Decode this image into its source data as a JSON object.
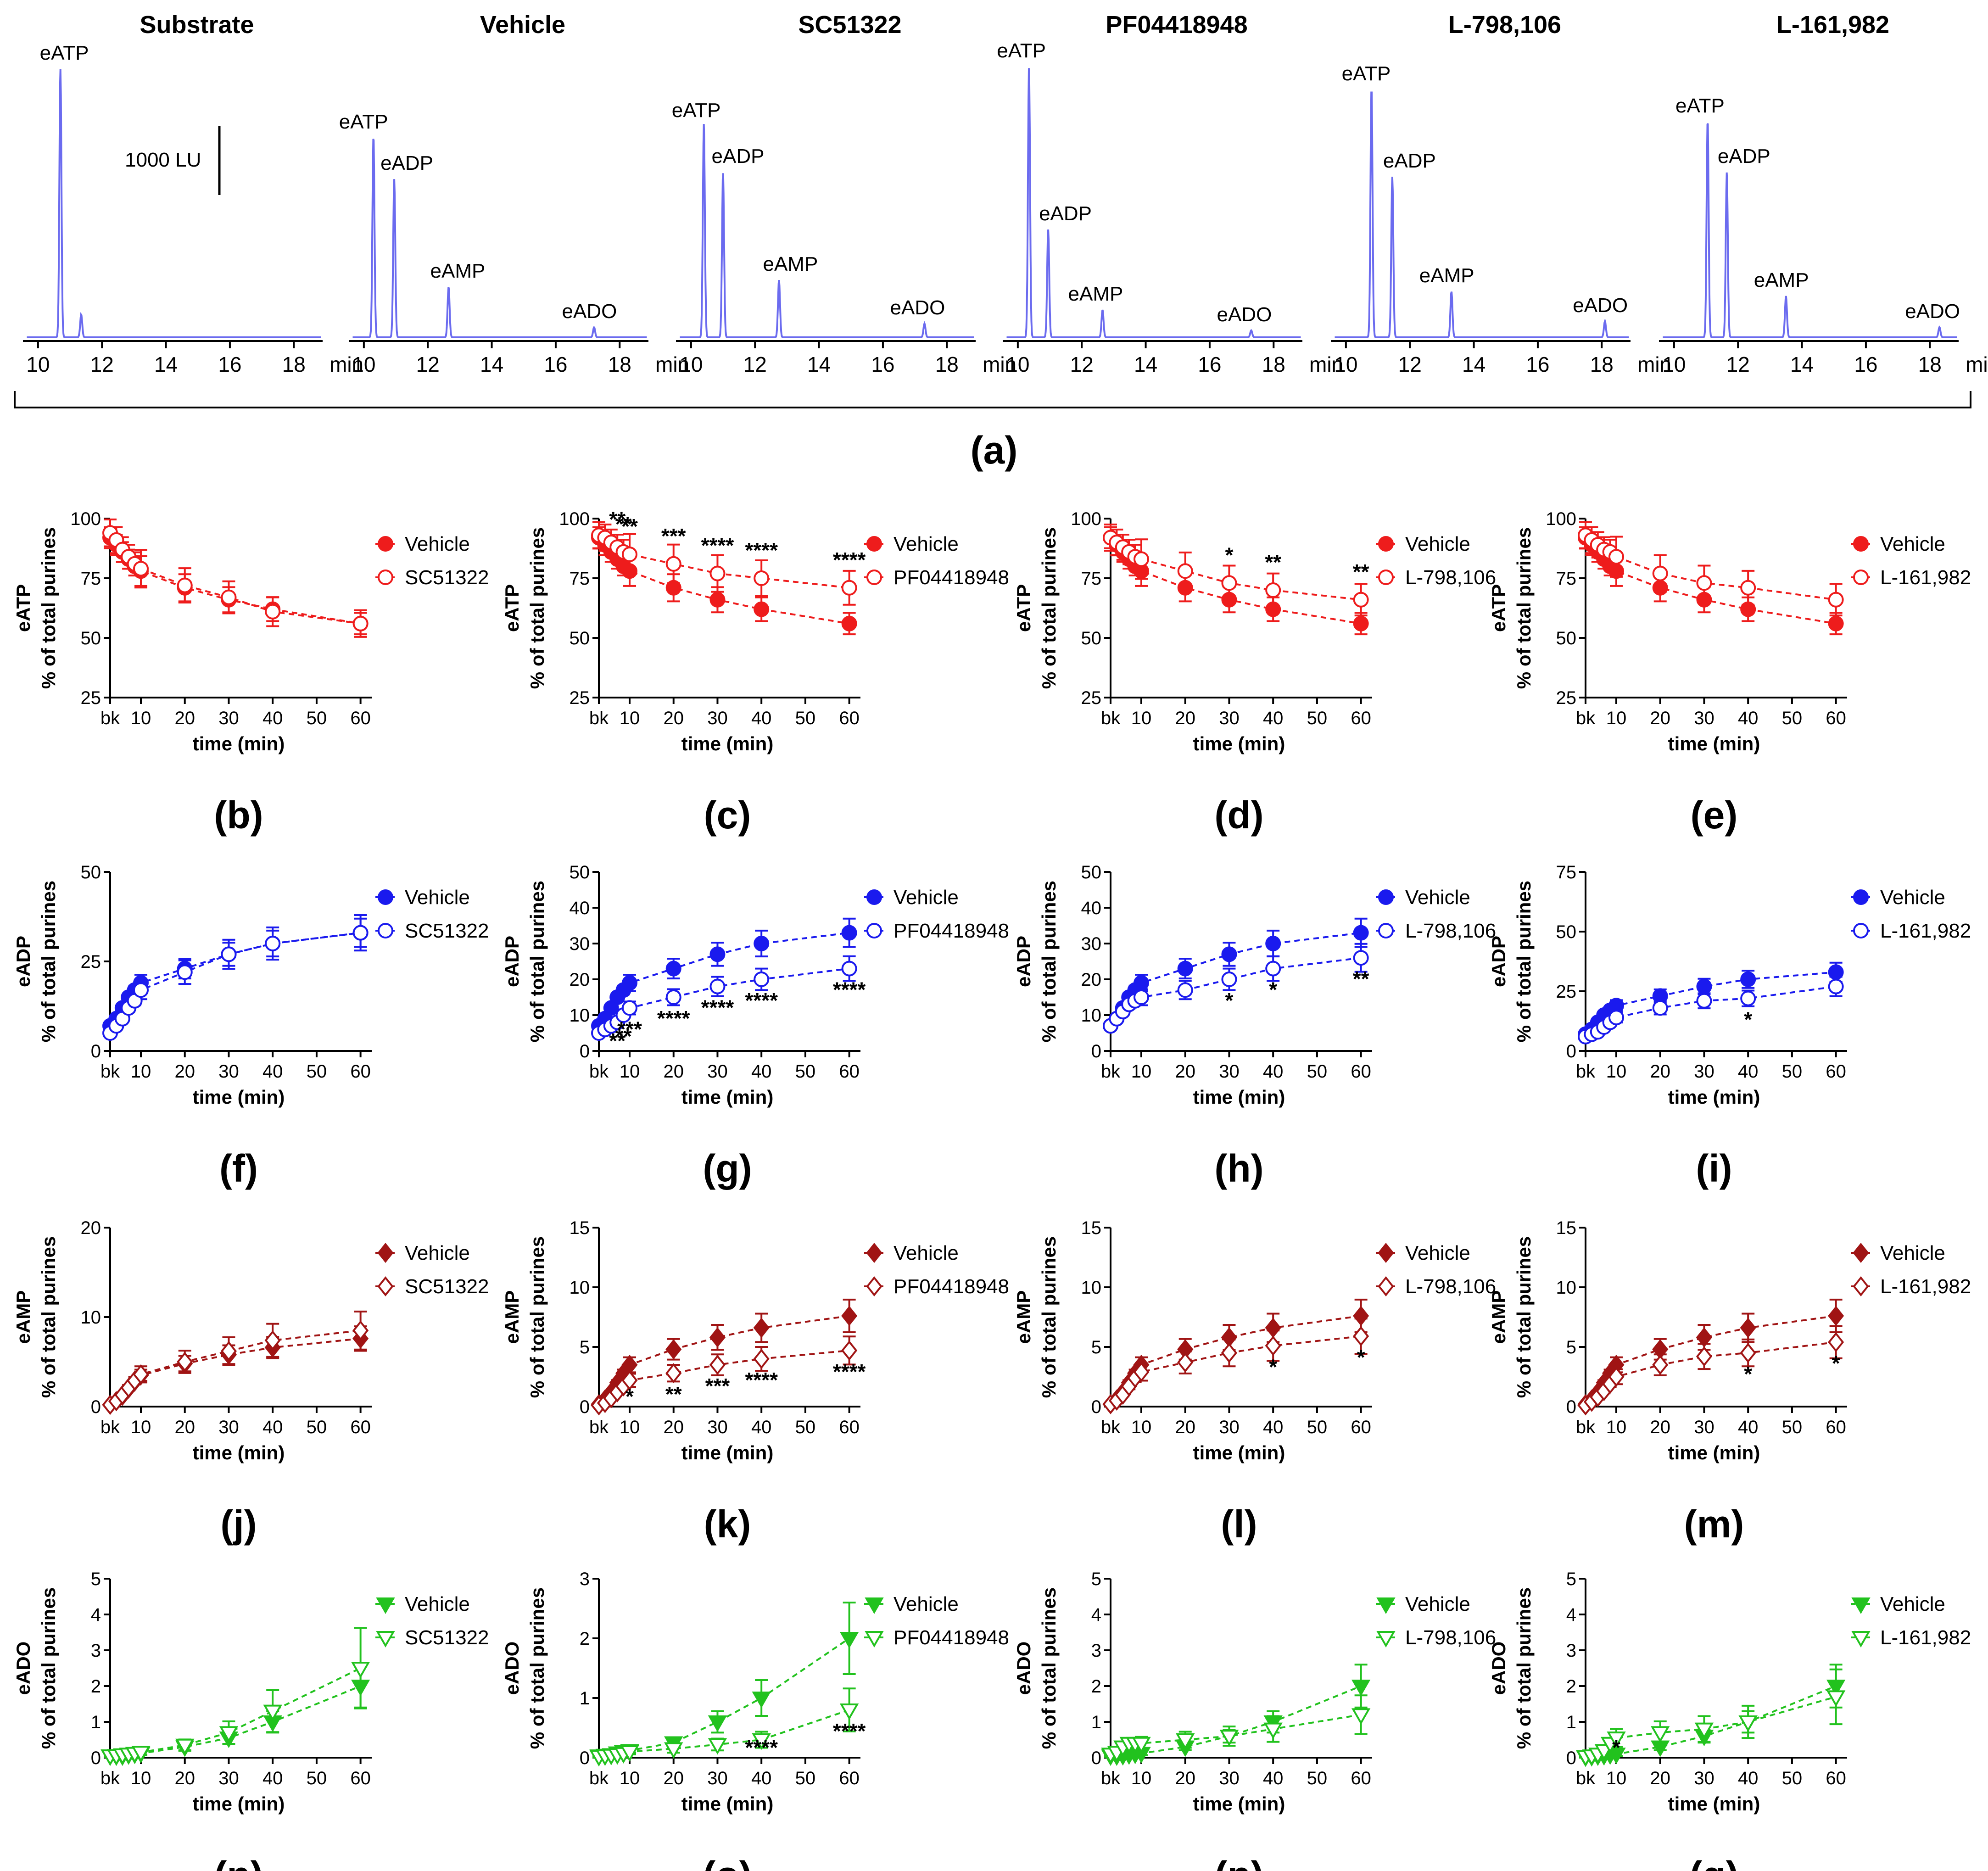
{
  "figure_label_a": "(a)",
  "scale_bar_label": "1000 LU",
  "chromatograms": {
    "x_unit": "min",
    "ticks": [
      10,
      12,
      14,
      16,
      18
    ],
    "titles": [
      "Substrate",
      "Vehicle",
      "SC51322",
      "PF04418948",
      "L-798,106",
      "L-161,982"
    ],
    "peak_labels": [
      "eATP",
      "eADP",
      "eAMP",
      "eADO"
    ]
  },
  "xtick_labels": [
    "bk",
    "10",
    "20",
    "30",
    "40",
    "50",
    "60"
  ],
  "xlabel": "time (min)",
  "ylabel_common": "% of total purines",
  "series_vehicle": "Vehicle",
  "drugs": [
    "SC51322",
    "PF04418948",
    "L-798,106",
    "L-161,982"
  ],
  "colors": {
    "eATP": "#ee1c1c",
    "eADP": "#1a1aee",
    "eAMP": "#a01414",
    "eADO": "#22c21e",
    "chrom": "#6b6bef"
  },
  "panel_labels": [
    [
      "(b)",
      "(c)",
      "(d)",
      "(e)"
    ],
    [
      "(f)",
      "(g)",
      "(h)",
      "(i)"
    ],
    [
      "(j)",
      "(k)",
      "(l)",
      "(m)"
    ],
    [
      "(n)",
      "(o)",
      "(p)",
      "(q)"
    ]
  ],
  "chart_data": [
    {
      "type": "line",
      "analyte": "eATP",
      "ylabel": "eATP",
      "ylim": [
        25,
        100
      ],
      "ytick_labels": [
        "25",
        "50",
        "75",
        "100"
      ],
      "x": [
        0,
        2,
        4,
        6,
        8,
        10,
        20,
        30,
        40,
        60
      ],
      "panels": [
        {
          "drug": "SC51322",
          "vehicle": [
            92,
            89,
            86,
            83,
            80,
            78,
            71,
            66,
            62,
            56
          ],
          "drug_values": [
            94,
            91,
            87,
            84,
            81,
            79,
            72,
            67,
            61,
            56
          ],
          "significance": []
        },
        {
          "drug": "PF04418948",
          "vehicle": [
            92,
            89,
            86,
            83,
            80,
            78,
            71,
            66,
            62,
            56
          ],
          "drug_values": [
            93,
            92,
            90,
            88,
            86,
            85,
            81,
            77,
            75,
            71
          ],
          "significance": [
            "",
            "",
            "",
            "**",
            "**",
            "**",
            "***",
            "****",
            "****",
            "****"
          ]
        },
        {
          "drug": "L-798,106",
          "vehicle": [
            92,
            89,
            86,
            83,
            80,
            78,
            71,
            66,
            62,
            56
          ],
          "drug_values": [
            92,
            90,
            88,
            86,
            84,
            83,
            78,
            73,
            70,
            66
          ],
          "significance": [
            "",
            "",
            "",
            "",
            "",
            "",
            "",
            "*",
            "**",
            "**"
          ]
        },
        {
          "drug": "L-161,982",
          "vehicle": [
            92,
            89,
            86,
            83,
            80,
            78,
            71,
            66,
            62,
            56
          ],
          "drug_values": [
            93,
            91,
            89,
            87,
            86,
            84,
            77,
            73,
            71,
            66
          ],
          "significance": []
        }
      ]
    },
    {
      "type": "line",
      "analyte": "eADP",
      "ylabel": "eADP",
      "x": [
        0,
        2,
        4,
        6,
        8,
        10,
        20,
        30,
        40,
        60
      ],
      "panels": [
        {
          "drug": "SC51322",
          "ylim": [
            0,
            50
          ],
          "ytick_labels": [
            "0",
            "25",
            "50"
          ],
          "vehicle": [
            7,
            9,
            12,
            15,
            17,
            19,
            23,
            27,
            30,
            33
          ],
          "drug_values": [
            5,
            7,
            9,
            12,
            14,
            17,
            22,
            27,
            30,
            33
          ],
          "significance": []
        },
        {
          "drug": "PF04418948",
          "ylim": [
            0,
            50
          ],
          "ytick_labels": [
            "0",
            "10",
            "20",
            "30",
            "40",
            "50"
          ],
          "vehicle": [
            7,
            9,
            12,
            15,
            17,
            19,
            23,
            27,
            30,
            33
          ],
          "drug_values": [
            5,
            6,
            7,
            8,
            10,
            12,
            15,
            18,
            20,
            23
          ],
          "significance": [
            "",
            "",
            "",
            "**",
            "**",
            "***",
            "****",
            "****",
            "****",
            "****"
          ]
        },
        {
          "drug": "L-798,106",
          "ylim": [
            0,
            50
          ],
          "ytick_labels": [
            "0",
            "10",
            "20",
            "30",
            "40",
            "50"
          ],
          "vehicle": [
            7,
            9,
            12,
            15,
            17,
            19,
            23,
            27,
            30,
            33
          ],
          "drug_values": [
            7,
            9,
            11,
            13,
            14,
            15,
            17,
            20,
            23,
            26
          ],
          "significance": [
            "",
            "",
            "",
            "",
            "",
            "",
            "",
            "*",
            "*",
            "**"
          ]
        },
        {
          "drug": "L-161,982",
          "ylim": [
            0,
            75
          ],
          "ytick_labels": [
            "0",
            "25",
            "50",
            "75"
          ],
          "vehicle": [
            7,
            9,
            12,
            15,
            17,
            19,
            23,
            27,
            30,
            33
          ],
          "drug_values": [
            6,
            7,
            8,
            10,
            12,
            14,
            18,
            21,
            22,
            27
          ],
          "significance": [
            "",
            "",
            "",
            "",
            "",
            "",
            "",
            "",
            "*",
            ""
          ]
        }
      ]
    },
    {
      "type": "line",
      "analyte": "eAMP",
      "ylabel": "eAMP",
      "x": [
        0,
        2,
        4,
        6,
        8,
        10,
        20,
        30,
        40,
        60
      ],
      "panels": [
        {
          "drug": "SC51322",
          "ylim": [
            0,
            20
          ],
          "ytick_labels": [
            "0",
            "10",
            "20"
          ],
          "vehicle": [
            0.2,
            0.6,
            1.2,
            2.0,
            2.8,
            3.5,
            4.8,
            5.8,
            6.6,
            7.6
          ],
          "drug_values": [
            0.2,
            0.6,
            1.3,
            2.1,
            2.9,
            3.6,
            5.0,
            6.2,
            7.4,
            8.5
          ],
          "significance": []
        },
        {
          "drug": "PF04418948",
          "ylim": [
            0,
            15
          ],
          "ytick_labels": [
            "0",
            "5",
            "10",
            "15"
          ],
          "vehicle": [
            0.2,
            0.6,
            1.2,
            2.0,
            2.8,
            3.5,
            4.8,
            5.8,
            6.6,
            7.6
          ],
          "drug_values": [
            0.1,
            0.3,
            0.7,
            1.2,
            1.7,
            2.2,
            2.8,
            3.5,
            4.0,
            4.7
          ],
          "significance": [
            "",
            "",
            "",
            "",
            "",
            "*",
            "**",
            "***",
            "****",
            "****"
          ]
        },
        {
          "drug": "L-798,106",
          "ylim": [
            0,
            15
          ],
          "ytick_labels": [
            "0",
            "5",
            "10",
            "15"
          ],
          "vehicle": [
            0.2,
            0.6,
            1.2,
            2.0,
            2.8,
            3.5,
            4.8,
            5.8,
            6.6,
            7.6
          ],
          "drug_values": [
            0.2,
            0.5,
            1.0,
            1.7,
            2.4,
            2.9,
            3.7,
            4.5,
            5.1,
            5.9
          ],
          "significance": [
            "",
            "",
            "",
            "",
            "",
            "",
            "",
            "",
            "*",
            "*"
          ]
        },
        {
          "drug": "L-161,982",
          "ylim": [
            0,
            15
          ],
          "ytick_labels": [
            "0",
            "5",
            "10",
            "15"
          ],
          "vehicle": [
            0.2,
            0.6,
            1.2,
            2.0,
            2.8,
            3.5,
            4.8,
            5.8,
            6.6,
            7.6
          ],
          "drug_values": [
            0.1,
            0.4,
            0.8,
            1.3,
            1.9,
            2.5,
            3.5,
            4.2,
            4.5,
            5.4
          ],
          "significance": [
            "",
            "",
            "",
            "",
            "",
            "",
            "",
            "",
            "*",
            "*"
          ]
        }
      ]
    },
    {
      "type": "line",
      "analyte": "eADO",
      "ylabel": "eADO",
      "x": [
        0,
        2,
        4,
        6,
        8,
        10,
        20,
        30,
        40,
        60
      ],
      "panels": [
        {
          "drug": "SC51322",
          "ylim": [
            0,
            5
          ],
          "ytick_labels": [
            "0",
            "1",
            "2",
            "3",
            "4",
            "5"
          ],
          "vehicle": [
            0.05,
            0.05,
            0.05,
            0.08,
            0.1,
            0.12,
            0.3,
            0.55,
            1.0,
            2.0
          ],
          "drug_values": [
            0.05,
            0.06,
            0.08,
            0.1,
            0.12,
            0.15,
            0.35,
            0.7,
            1.3,
            2.5
          ],
          "significance": []
        },
        {
          "drug": "PF04418948",
          "ylim": [
            0,
            3
          ],
          "ytick_labels": [
            "0",
            "1",
            "2",
            "3"
          ],
          "vehicle": [
            0.03,
            0.04,
            0.05,
            0.08,
            0.1,
            0.12,
            0.25,
            0.6,
            1.0,
            2.0
          ],
          "drug_values": [
            0.02,
            0.03,
            0.04,
            0.05,
            0.07,
            0.1,
            0.15,
            0.22,
            0.3,
            0.8
          ],
          "significance": [
            "",
            "",
            "",
            "",
            "",
            "",
            "",
            "",
            "****",
            "****"
          ]
        },
        {
          "drug": "L-798,106",
          "ylim": [
            0,
            5
          ],
          "ytick_labels": [
            "0",
            "1",
            "2",
            "3",
            "4",
            "5"
          ],
          "vehicle": [
            0.05,
            0.05,
            0.06,
            0.08,
            0.1,
            0.12,
            0.3,
            0.6,
            1.0,
            2.0
          ],
          "drug_values": [
            0.1,
            0.15,
            0.3,
            0.4,
            0.4,
            0.4,
            0.5,
            0.6,
            0.8,
            1.2
          ],
          "significance": []
        },
        {
          "drug": "L-161,982",
          "ylim": [
            0,
            5
          ],
          "ytick_labels": [
            "0",
            "1",
            "2",
            "3",
            "4",
            "5"
          ],
          "vehicle": [
            0.02,
            0.03,
            0.05,
            0.06,
            0.08,
            0.1,
            0.3,
            0.6,
            1.0,
            2.0
          ],
          "drug_values": [
            0.03,
            0.05,
            0.1,
            0.2,
            0.4,
            0.55,
            0.7,
            0.8,
            1.0,
            1.7
          ],
          "significance": [
            "",
            "",
            "",
            "",
            "",
            "*",
            "",
            "",
            "",
            ""
          ]
        }
      ]
    }
  ]
}
